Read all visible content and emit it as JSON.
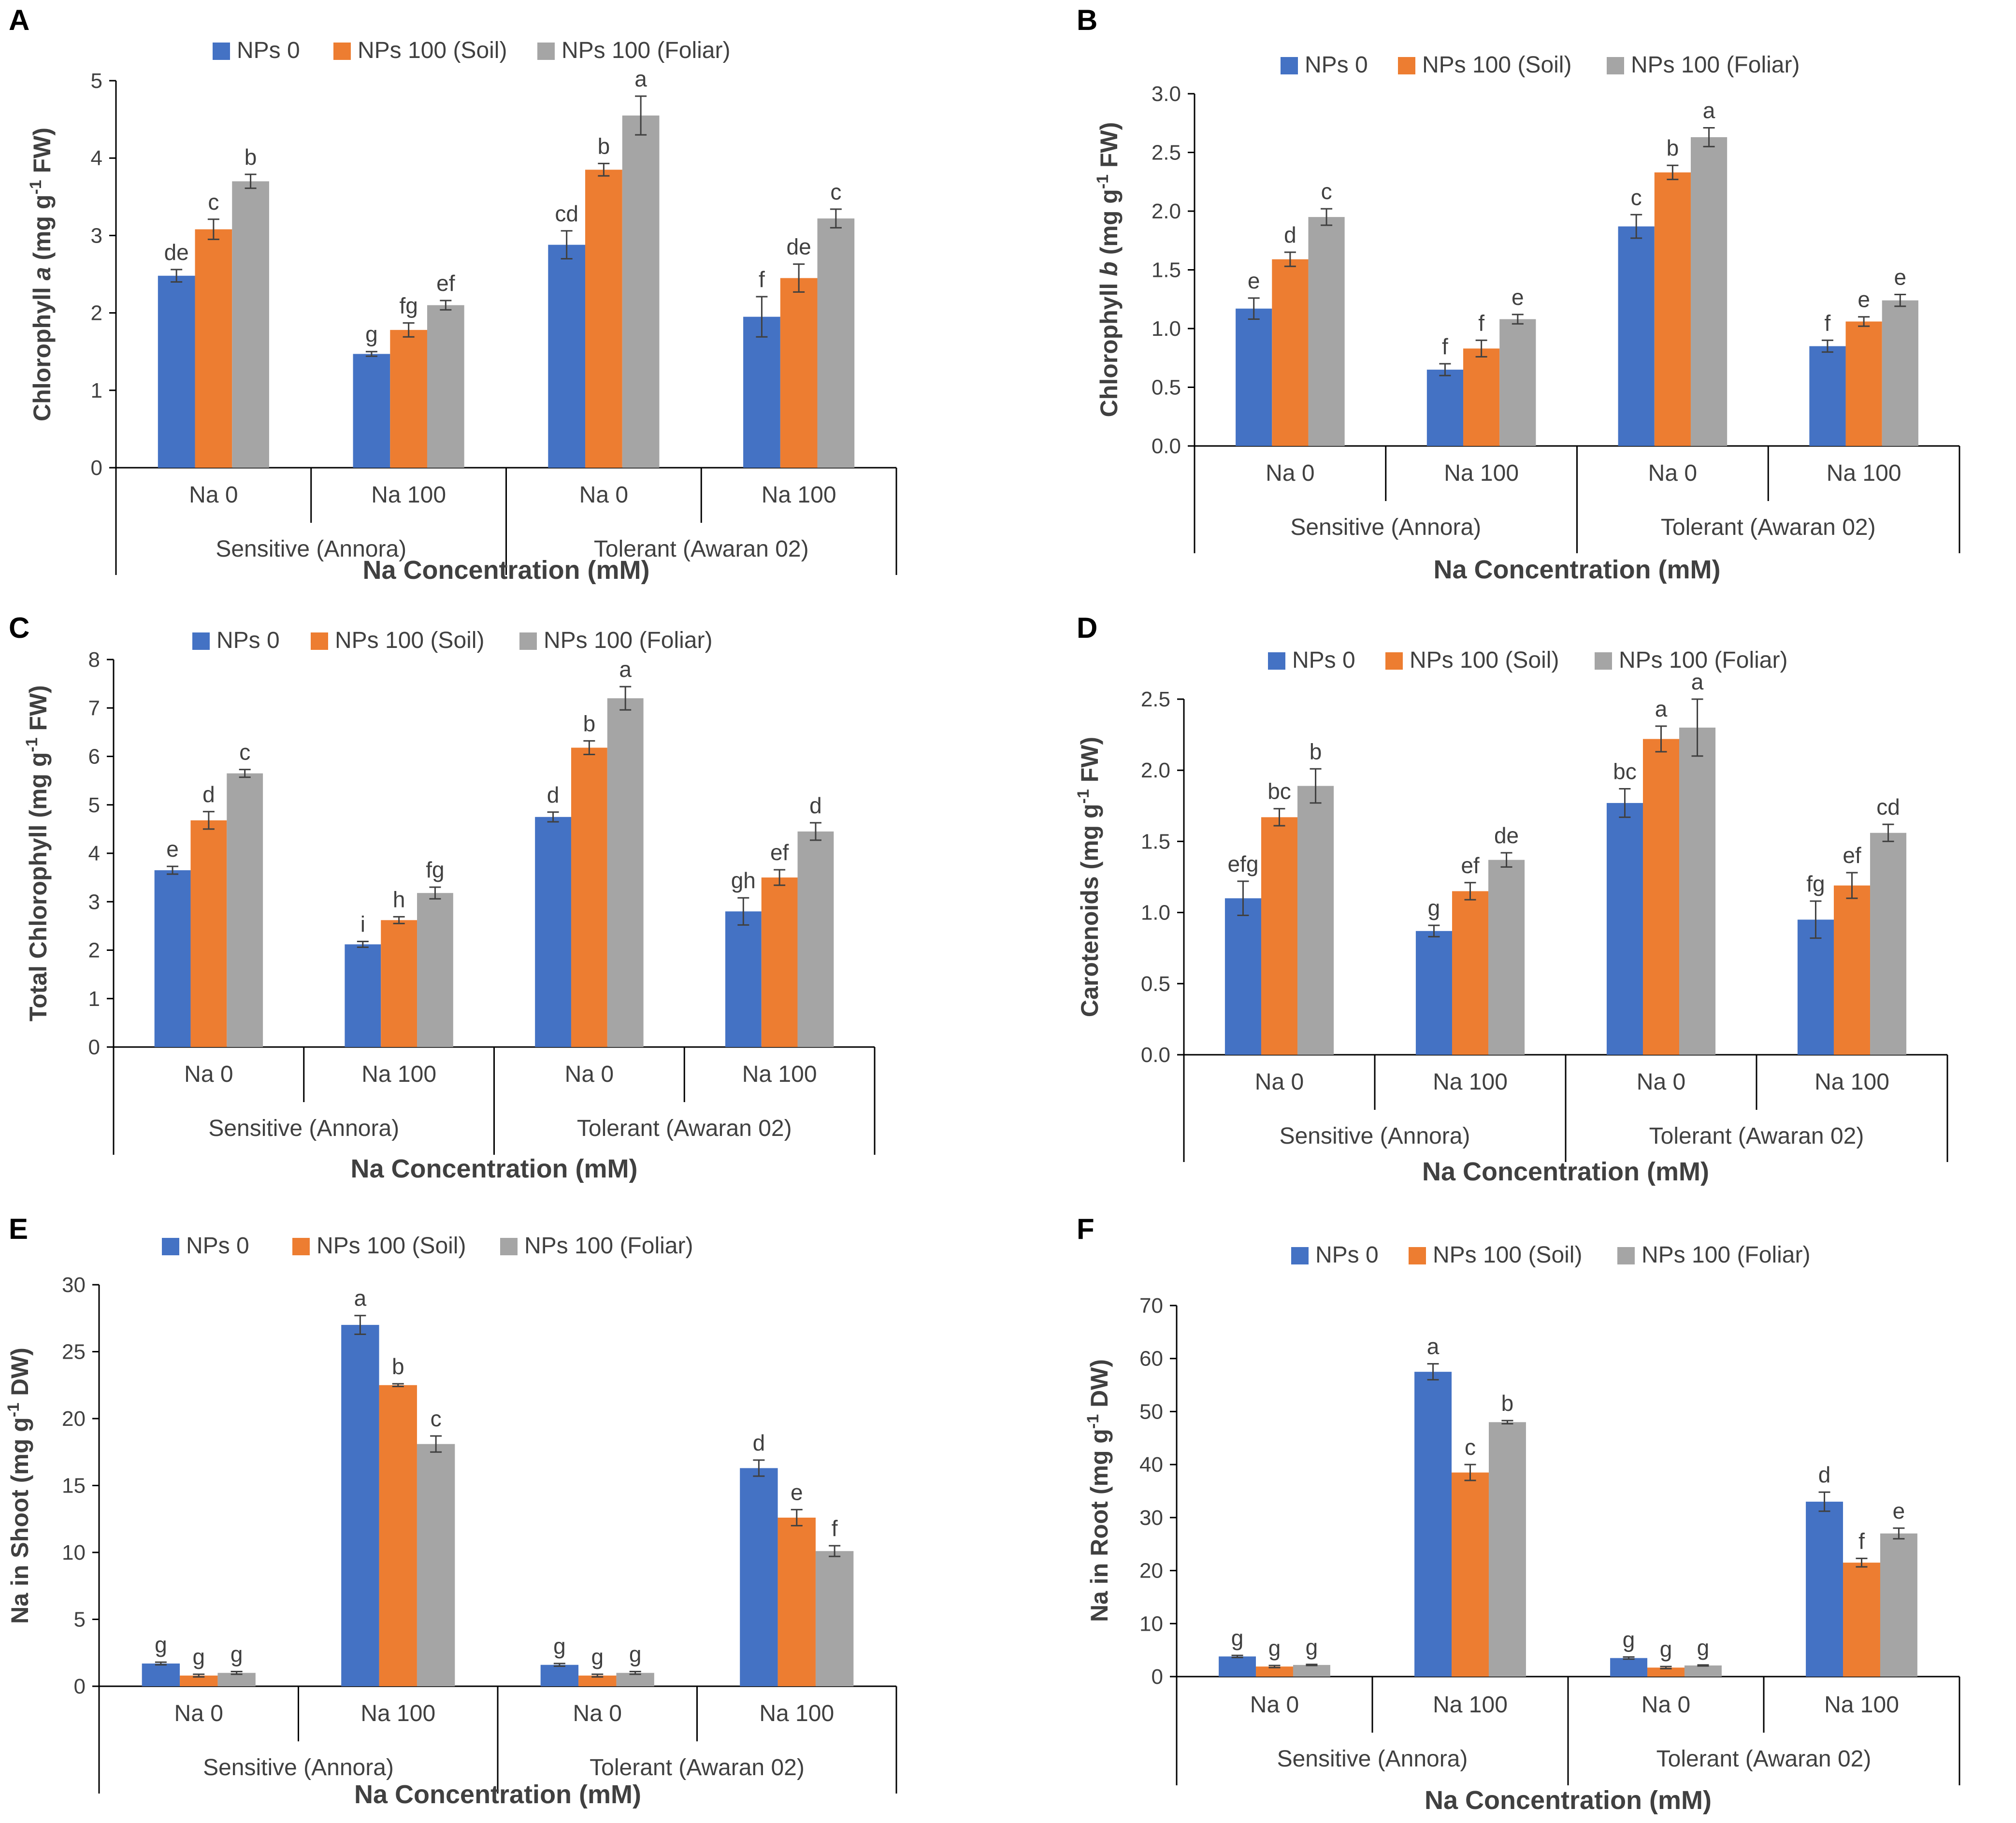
{
  "colors": {
    "np0": "#4472C4",
    "soil": "#ED7D31",
    "foliar": "#A5A5A5",
    "axis": "#000000",
    "text": "#404040",
    "error": "#404040"
  },
  "chart_data": [
    {
      "panel": "A",
      "type": "bar",
      "ylabel": "Chlorophyll a (mg g-1 FW)",
      "ylabel_parts": [
        {
          "t": "Chlorophyll "
        },
        {
          "t": "a",
          "i": true
        },
        {
          "t": " (mg g"
        },
        {
          "t": "-1",
          "sup": true
        },
        {
          "t": " FW)"
        }
      ],
      "xlabel": "Na Concentration (mM)",
      "ylim": [
        0,
        5
      ],
      "yticks": [
        0,
        1,
        2,
        3,
        4,
        5
      ],
      "ytick_labels": [
        "0",
        "1",
        "2",
        "3",
        "4",
        "5"
      ],
      "categories": [
        "Na 0",
        "Na 100",
        "Na 0",
        "Na 100"
      ],
      "groups": [
        "Sensitive (Annora)",
        "Tolerant (Awaran 02)"
      ],
      "series": [
        {
          "name": "NPs 0",
          "values": [
            2.48,
            1.47,
            2.88,
            1.95
          ],
          "errors": [
            0.08,
            0.03,
            0.18,
            0.26
          ],
          "letters": [
            "de",
            "g",
            "cd",
            "f"
          ]
        },
        {
          "name": "NPs 100 (Soil)",
          "values": [
            3.08,
            1.78,
            3.85,
            2.45
          ],
          "errors": [
            0.13,
            0.09,
            0.08,
            0.18
          ],
          "letters": [
            "c",
            "fg",
            "b",
            "de"
          ]
        },
        {
          "name": "NPs 100 (Foliar)",
          "values": [
            3.7,
            2.1,
            4.55,
            3.22
          ],
          "errors": [
            0.09,
            0.06,
            0.25,
            0.12
          ],
          "letters": [
            "b",
            "ef",
            "a",
            "c"
          ]
        }
      ]
    },
    {
      "panel": "B",
      "type": "bar",
      "ylabel": "Chlorophyll b (mg g-1 FW)",
      "ylabel_parts": [
        {
          "t": "Chlorophyll "
        },
        {
          "t": "b",
          "i": true
        },
        {
          "t": " (mg g"
        },
        {
          "t": "-1",
          "sup": true
        },
        {
          "t": " FW)"
        }
      ],
      "xlabel": "Na Concentration (mM)",
      "ylim": [
        0,
        3
      ],
      "yticks": [
        0,
        0.5,
        1,
        1.5,
        2,
        2.5,
        3
      ],
      "ytick_labels": [
        "0.0",
        "0.5",
        "1.0",
        "1.5",
        "2.0",
        "2.5",
        "3.0"
      ],
      "categories": [
        "Na 0",
        "Na 100",
        "Na 0",
        "Na 100"
      ],
      "groups": [
        "Sensitive (Annora)",
        "Tolerant (Awaran 02)"
      ],
      "series": [
        {
          "name": "NPs 0",
          "values": [
            1.17,
            0.65,
            1.87,
            0.85
          ],
          "errors": [
            0.09,
            0.05,
            0.1,
            0.05
          ],
          "letters": [
            "e",
            "f",
            "c",
            "f"
          ]
        },
        {
          "name": "NPs 100 (Soil)",
          "values": [
            1.59,
            0.83,
            2.33,
            1.06
          ],
          "errors": [
            0.06,
            0.07,
            0.06,
            0.04
          ],
          "letters": [
            "d",
            "f",
            "b",
            "e"
          ]
        },
        {
          "name": "NPs 100 (Foliar)",
          "values": [
            1.95,
            1.08,
            2.63,
            1.24
          ],
          "errors": [
            0.07,
            0.04,
            0.08,
            0.05
          ],
          "letters": [
            "c",
            "e",
            "a",
            "e"
          ]
        }
      ]
    },
    {
      "panel": "C",
      "type": "bar",
      "ylabel": "Total Chlorophyll (mg g-1 FW)",
      "ylabel_parts": [
        {
          "t": "Total Chlorophyll (mg g"
        },
        {
          "t": "-1",
          "sup": true
        },
        {
          "t": " FW)"
        }
      ],
      "xlabel": "Na Concentration (mM)",
      "ylim": [
        0,
        8
      ],
      "yticks": [
        0,
        1,
        2,
        3,
        4,
        5,
        6,
        7,
        8
      ],
      "ytick_labels": [
        "0",
        "1",
        "2",
        "3",
        "4",
        "5",
        "6",
        "7",
        "8"
      ],
      "categories": [
        "Na 0",
        "Na 100",
        "Na 0",
        "Na 100"
      ],
      "groups": [
        "Sensitive (Annora)",
        "Tolerant (Awaran 02)"
      ],
      "series": [
        {
          "name": "NPs 0",
          "values": [
            3.65,
            2.12,
            4.75,
            2.8
          ],
          "errors": [
            0.08,
            0.06,
            0.1,
            0.28
          ],
          "letters": [
            "e",
            "i",
            "d",
            "gh"
          ]
        },
        {
          "name": "NPs 100 (Soil)",
          "values": [
            4.68,
            2.62,
            6.18,
            3.5
          ],
          "errors": [
            0.18,
            0.07,
            0.14,
            0.16
          ],
          "letters": [
            "d",
            "h",
            "b",
            "ef"
          ]
        },
        {
          "name": "NPs 100 (Foliar)",
          "values": [
            5.65,
            3.18,
            7.2,
            4.45
          ],
          "errors": [
            0.08,
            0.12,
            0.24,
            0.18
          ],
          "letters": [
            "c",
            "fg",
            "a",
            "d"
          ]
        }
      ]
    },
    {
      "panel": "D",
      "type": "bar",
      "ylabel": "Carotenoids (mg g-1 FW)",
      "ylabel_parts": [
        {
          "t": "Carotenoids (mg g"
        },
        {
          "t": "-1",
          "sup": true
        },
        {
          "t": " FW)"
        }
      ],
      "xlabel": "Na Concentration (mM)",
      "ylim": [
        0,
        2.5
      ],
      "yticks": [
        0,
        0.5,
        1,
        1.5,
        2,
        2.5
      ],
      "ytick_labels": [
        "0.0",
        "0.5",
        "1.0",
        "1.5",
        "2.0",
        "2.5"
      ],
      "categories": [
        "Na 0",
        "Na 100",
        "Na 0",
        "Na 100"
      ],
      "groups": [
        "Sensitive (Annora)",
        "Tolerant (Awaran 02)"
      ],
      "series": [
        {
          "name": "NPs 0",
          "values": [
            1.1,
            0.87,
            1.77,
            0.95
          ],
          "errors": [
            0.12,
            0.04,
            0.1,
            0.13
          ],
          "letters": [
            "efg",
            "g",
            "bc",
            "fg"
          ]
        },
        {
          "name": "NPs 100 (Soil)",
          "values": [
            1.67,
            1.15,
            2.22,
            1.19
          ],
          "errors": [
            0.06,
            0.06,
            0.09,
            0.09
          ],
          "letters": [
            "bc",
            "ef",
            "a",
            "ef"
          ]
        },
        {
          "name": "NPs 100 (Foliar)",
          "values": [
            1.89,
            1.37,
            2.3,
            1.56
          ],
          "errors": [
            0.12,
            0.05,
            0.2,
            0.06
          ],
          "letters": [
            "b",
            "de",
            "a",
            "cd"
          ]
        }
      ]
    },
    {
      "panel": "E",
      "type": "bar",
      "ylabel": "Na in Shoot (mg g-1 DW)",
      "ylabel_parts": [
        {
          "t": "Na in Shoot (mg g"
        },
        {
          "t": "-1",
          "sup": true
        },
        {
          "t": " DW)"
        }
      ],
      "xlabel": "Na Concentration (mM)",
      "ylim": [
        0,
        30
      ],
      "yticks": [
        0,
        5,
        10,
        15,
        20,
        25,
        30
      ],
      "ytick_labels": [
        "0",
        "5",
        "10",
        "15",
        "20",
        "25",
        "30"
      ],
      "categories": [
        "Na 0",
        "Na 100",
        "Na 0",
        "Na 100"
      ],
      "groups": [
        "Sensitive (Annora)",
        "Tolerant (Awaran 02)"
      ],
      "series": [
        {
          "name": "NPs 0",
          "values": [
            1.7,
            27.0,
            1.6,
            16.3
          ],
          "errors": [
            0.1,
            0.7,
            0.1,
            0.6
          ],
          "letters": [
            "g",
            "a",
            "g",
            "d"
          ]
        },
        {
          "name": "NPs 100 (Soil)",
          "values": [
            0.8,
            22.5,
            0.8,
            12.6
          ],
          "errors": [
            0.1,
            0.1,
            0.1,
            0.6
          ],
          "letters": [
            "g",
            "b",
            "g",
            "e"
          ]
        },
        {
          "name": "NPs 100 (Foliar)",
          "values": [
            1.0,
            18.1,
            1.0,
            10.1
          ],
          "errors": [
            0.1,
            0.6,
            0.1,
            0.4
          ],
          "letters": [
            "g",
            "c",
            "g",
            "f"
          ]
        }
      ]
    },
    {
      "panel": "F",
      "type": "bar",
      "ylabel": "Na in Root (mg g-1 DW)",
      "ylabel_parts": [
        {
          "t": "Na in Root (mg g"
        },
        {
          "t": "-1",
          "sup": true
        },
        {
          "t": " DW)"
        }
      ],
      "xlabel": "Na Concentration (mM)",
      "ylim": [
        0,
        70
      ],
      "yticks": [
        0,
        10,
        20,
        30,
        40,
        50,
        60,
        70
      ],
      "ytick_labels": [
        "0",
        "10",
        "20",
        "30",
        "40",
        "50",
        "60",
        "70"
      ],
      "categories": [
        "Na 0",
        "Na 100",
        "Na 0",
        "Na 100"
      ],
      "groups": [
        "Sensitive (Annora)",
        "Tolerant (Awaran 02)"
      ],
      "series": [
        {
          "name": "NPs 0",
          "values": [
            3.8,
            57.5,
            3.5,
            33.0
          ],
          "errors": [
            0.2,
            1.5,
            0.2,
            1.8
          ],
          "letters": [
            "g",
            "a",
            "g",
            "d"
          ]
        },
        {
          "name": "NPs 100 (Soil)",
          "values": [
            1.9,
            38.5,
            1.7,
            21.5
          ],
          "errors": [
            0.2,
            1.5,
            0.2,
            0.8
          ],
          "letters": [
            "g",
            "c",
            "g",
            "f"
          ]
        },
        {
          "name": "NPs 100 (Foliar)",
          "values": [
            2.2,
            48.0,
            2.1,
            27.0
          ],
          "errors": [
            0.1,
            0.3,
            0.1,
            1.0
          ],
          "letters": [
            "g",
            "b",
            "g",
            "e"
          ]
        }
      ]
    }
  ]
}
